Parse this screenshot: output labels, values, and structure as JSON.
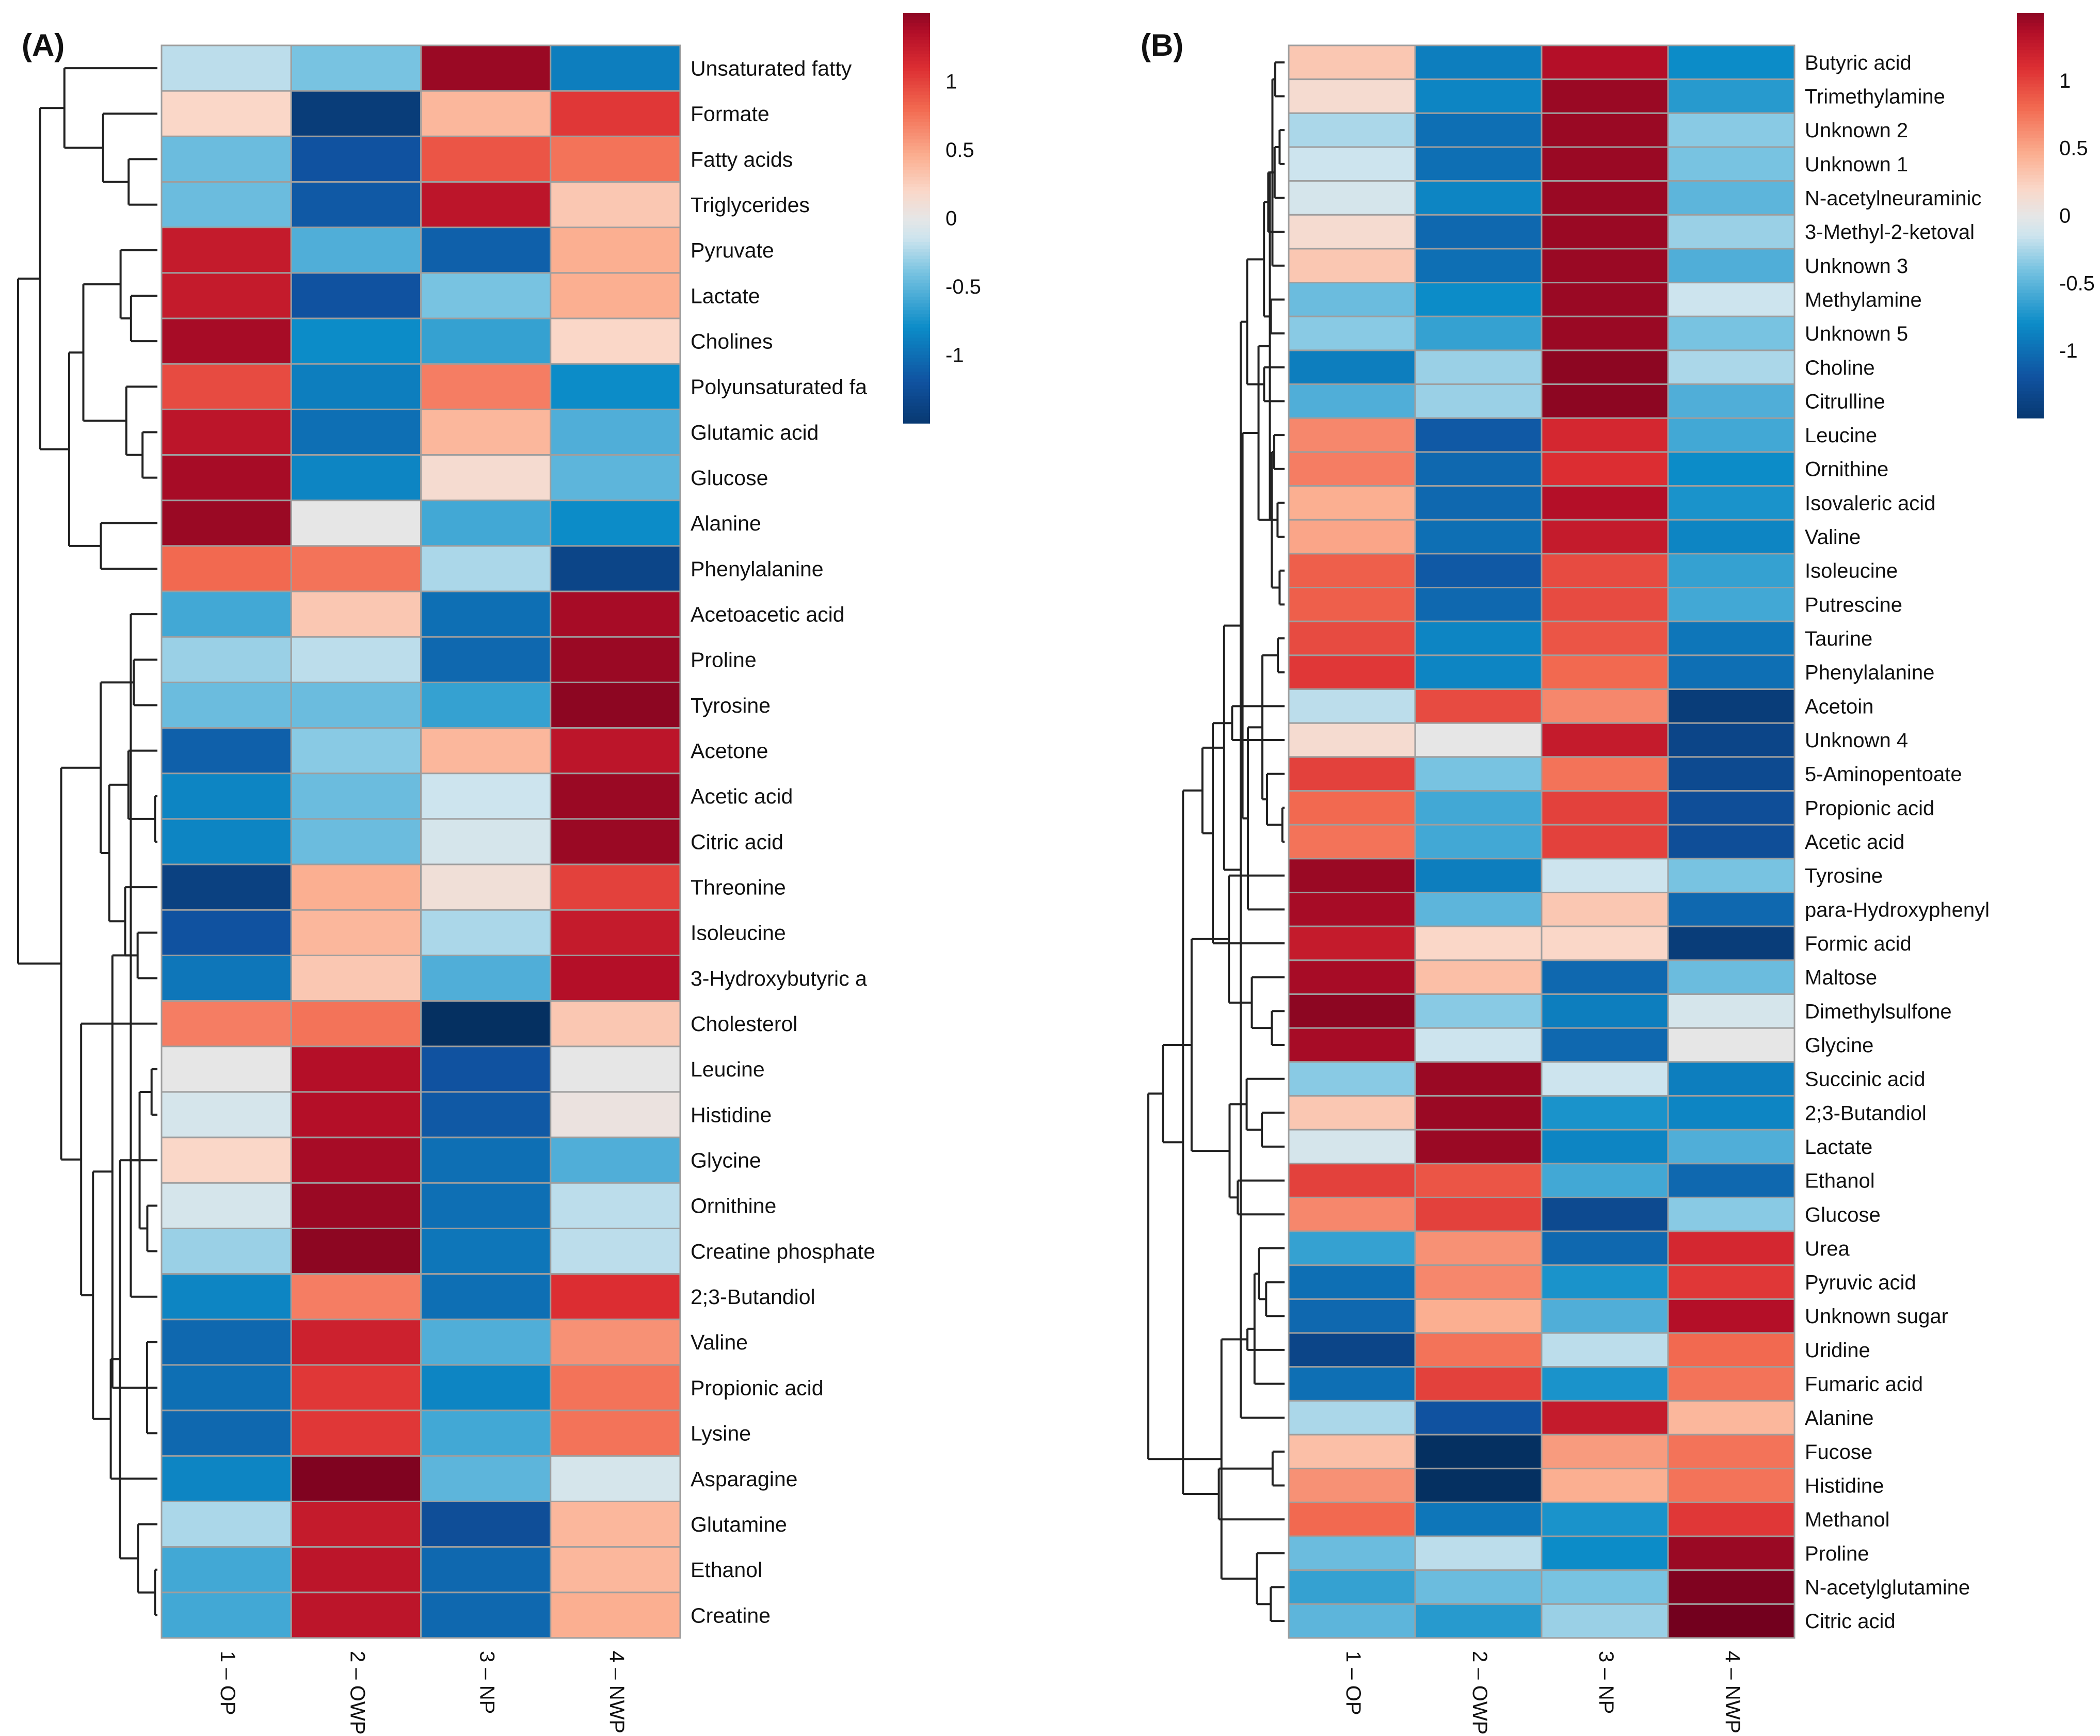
{
  "chart_data": [
    {
      "type": "heatmap",
      "panel_label": "(A)",
      "columns": [
        "1 – OP",
        "2 – OWP",
        "3 – NP",
        "4 – NWP"
      ],
      "rows": [
        "Unsaturated fatty",
        "Formate",
        "Fatty acids",
        "Triglycerides",
        "Pyruvate",
        "Lactate",
        "Cholines",
        "Polyunsaturated fa",
        "Glutamic acid",
        "Glucose",
        "Alanine",
        "Phenylalanine",
        "Acetoacetic acid",
        "Proline",
        "Tyrosine",
        "Acetone",
        "Acetic acid",
        "Citric acid",
        "Threonine",
        "Isoleucine",
        "3-Hydroxybutyric a",
        "Cholesterol",
        "Leucine",
        "Histidine",
        "Glycine",
        "Ornithine",
        "Creatine phosphate",
        "2;3-Butandiol",
        "Valine",
        "Propionic acid",
        "Lysine",
        "Asparagine",
        "Glutamine",
        "Ethanol",
        "Creatine"
      ],
      "values": [
        [
          -0.2,
          -0.4,
          1.45,
          -0.9
        ],
        [
          0.2,
          -1.45,
          0.4,
          1.05
        ],
        [
          -0.45,
          -1.2,
          0.9,
          0.75
        ],
        [
          -0.45,
          -1.15,
          1.3,
          0.3
        ],
        [
          1.25,
          -0.55,
          -1.1,
          0.45
        ],
        [
          1.25,
          -1.2,
          -0.4,
          0.45
        ],
        [
          1.4,
          -0.8,
          -0.65,
          0.2
        ],
        [
          0.95,
          -0.9,
          0.7,
          -0.8
        ],
        [
          1.3,
          -1.0,
          0.4,
          -0.55
        ],
        [
          1.4,
          -0.85,
          0.15,
          -0.5
        ],
        [
          1.45,
          0.0,
          -0.6,
          -0.8
        ],
        [
          0.8,
          0.75,
          -0.25,
          -1.35
        ],
        [
          -0.6,
          0.3,
          -1.0,
          1.4
        ],
        [
          -0.3,
          -0.2,
          -1.05,
          1.45
        ],
        [
          -0.45,
          -0.45,
          -0.65,
          1.5
        ],
        [
          -1.1,
          -0.35,
          0.4,
          1.3
        ],
        [
          -0.85,
          -0.45,
          -0.15,
          1.45
        ],
        [
          -0.85,
          -0.45,
          -0.1,
          1.45
        ],
        [
          -1.4,
          0.45,
          0.1,
          1.0
        ],
        [
          -1.2,
          0.4,
          -0.25,
          1.25
        ],
        [
          -0.95,
          0.3,
          -0.55,
          1.35
        ],
        [
          0.7,
          0.75,
          -1.6,
          0.3
        ],
        [
          0.0,
          1.35,
          -1.2,
          0.0
        ],
        [
          -0.1,
          1.35,
          -1.15,
          0.05
        ],
        [
          0.2,
          1.4,
          -1.0,
          -0.55
        ],
        [
          -0.1,
          1.45,
          -1.0,
          -0.2
        ],
        [
          -0.3,
          1.5,
          -0.95,
          -0.2
        ],
        [
          -0.85,
          0.7,
          -1.0,
          1.1
        ],
        [
          -1.05,
          1.2,
          -0.55,
          0.6
        ],
        [
          -1.0,
          1.05,
          -0.85,
          0.75
        ],
        [
          -1.05,
          1.05,
          -0.6,
          0.75
        ],
        [
          -0.85,
          1.55,
          -0.5,
          -0.1
        ],
        [
          -0.25,
          1.25,
          -1.25,
          0.4
        ],
        [
          -0.6,
          1.3,
          -1.05,
          0.4
        ],
        [
          -0.6,
          1.3,
          -1.05,
          0.45
        ]
      ],
      "colorbar": {
        "ticks": [
          1,
          0.5,
          0,
          -0.5,
          -1
        ],
        "tick_labels": [
          "1",
          "0.5",
          "0",
          "-0.5",
          "-1"
        ],
        "range": [
          -1.5,
          1.5
        ]
      }
    },
    {
      "type": "heatmap",
      "panel_label": "(B)",
      "columns": [
        "1 – OP",
        "2 – OWP",
        "3 – NP",
        "4 – NWP"
      ],
      "rows": [
        "Butyric acid",
        "Trimethylamine",
        "Unknown 2",
        "Unknown 1",
        "N-acetylneuraminic",
        "3-Methyl-2-ketoval",
        "Unknown 3",
        "Methylamine",
        "Unknown 5",
        "Choline",
        "Citrulline",
        "Leucine",
        "Ornithine",
        "Isovaleric acid",
        "Valine",
        "Isoleucine",
        "Putrescine",
        "Taurine",
        "Phenylalanine",
        "Acetoin",
        "Unknown 4",
        "5-Aminopentoate",
        "Propionic acid",
        "Acetic acid",
        "Tyrosine",
        "para-Hydroxyphenyl",
        "Formic acid",
        "Maltose",
        "Dimethylsulfone",
        "Glycine",
        "Succinic acid",
        "2;3-Butandiol",
        "Lactate",
        "Ethanol",
        "Glucose",
        "Urea",
        "Pyruvic acid",
        "Unknown sugar",
        "Uridine",
        "Fumaric acid",
        "Alanine",
        "Fucose",
        "Histidine",
        "Methanol",
        "Proline",
        "N-acetylglutamine",
        "Citric acid"
      ],
      "values": [
        [
          0.3,
          -0.9,
          1.35,
          -0.8
        ],
        [
          0.15,
          -0.85,
          1.45,
          -0.7
        ],
        [
          -0.25,
          -1.0,
          1.45,
          -0.35
        ],
        [
          -0.15,
          -1.0,
          1.45,
          -0.4
        ],
        [
          -0.1,
          -0.85,
          1.45,
          -0.5
        ],
        [
          0.15,
          -1.05,
          1.45,
          -0.3
        ],
        [
          0.3,
          -1.0,
          1.45,
          -0.55
        ],
        [
          -0.45,
          -0.8,
          1.45,
          -0.15
        ],
        [
          -0.35,
          -0.65,
          1.45,
          -0.4
        ],
        [
          -0.9,
          -0.3,
          1.5,
          -0.25
        ],
        [
          -0.55,
          -0.3,
          1.5,
          -0.55
        ],
        [
          0.65,
          -1.15,
          1.15,
          -0.6
        ],
        [
          0.7,
          -1.05,
          1.1,
          -0.8
        ],
        [
          0.45,
          -1.05,
          1.35,
          -0.75
        ],
        [
          0.5,
          -1.0,
          1.25,
          -0.85
        ],
        [
          0.85,
          -1.15,
          0.95,
          -0.65
        ],
        [
          0.85,
          -1.05,
          0.95,
          -0.6
        ],
        [
          0.95,
          -0.85,
          0.9,
          -0.95
        ],
        [
          1.05,
          -0.85,
          0.8,
          -1.0
        ],
        [
          -0.2,
          0.95,
          0.65,
          -1.45
        ],
        [
          0.15,
          0.0,
          1.25,
          -1.35
        ],
        [
          1.0,
          -0.4,
          0.75,
          -1.3
        ],
        [
          0.8,
          -0.6,
          1.0,
          -1.25
        ],
        [
          0.75,
          -0.6,
          1.0,
          -1.25
        ],
        [
          1.45,
          -0.9,
          -0.15,
          -0.4
        ],
        [
          1.4,
          -0.5,
          0.3,
          -1.05
        ],
        [
          1.25,
          0.2,
          0.2,
          -1.45
        ],
        [
          1.4,
          0.35,
          -1.05,
          -0.45
        ],
        [
          1.5,
          -0.35,
          -0.9,
          -0.1
        ],
        [
          1.4,
          -0.15,
          -1.05,
          0.0
        ],
        [
          -0.35,
          1.45,
          -0.15,
          -0.9
        ],
        [
          0.3,
          1.45,
          -0.75,
          -0.85
        ],
        [
          -0.1,
          1.45,
          -0.85,
          -0.55
        ],
        [
          1.0,
          0.9,
          -0.6,
          -1.05
        ],
        [
          0.65,
          1.0,
          -1.3,
          -0.35
        ],
        [
          -0.65,
          0.6,
          -1.05,
          1.15
        ],
        [
          -1.0,
          0.65,
          -0.75,
          1.05
        ],
        [
          -1.05,
          0.45,
          -0.55,
          1.35
        ],
        [
          -1.35,
          0.75,
          -0.2,
          0.8
        ],
        [
          -1.0,
          1.0,
          -0.75,
          0.75
        ],
        [
          -0.25,
          -1.2,
          1.25,
          0.4
        ],
        [
          0.35,
          -1.6,
          0.55,
          0.75
        ],
        [
          0.6,
          -1.6,
          0.45,
          0.75
        ],
        [
          0.8,
          -0.95,
          -0.75,
          1.05
        ],
        [
          -0.45,
          -0.2,
          -0.8,
          1.45
        ],
        [
          -0.65,
          -0.45,
          -0.4,
          1.55
        ],
        [
          -0.5,
          -0.7,
          -0.3,
          1.6
        ]
      ],
      "colorbar": {
        "ticks": [
          1,
          0.5,
          0,
          -0.5,
          -1
        ],
        "tick_labels": [
          "1",
          "0.5",
          "0",
          "-0.5",
          "-1"
        ],
        "range": [
          -1.5,
          1.5
        ]
      }
    }
  ]
}
